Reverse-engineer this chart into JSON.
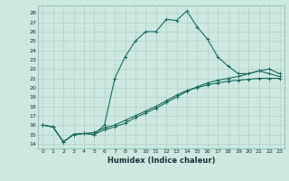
{
  "title": "",
  "xlabel": "Humidex (Indice chaleur)",
  "ylabel": "",
  "bg_color": "#cce8e0",
  "grid_color": "#b0d0c8",
  "line_color": "#1a6b5a",
  "xlim": [
    -0.5,
    23.5
  ],
  "ylim": [
    13.5,
    28.8
  ],
  "yticks": [
    14,
    15,
    16,
    17,
    18,
    19,
    20,
    21,
    22,
    23,
    24,
    25,
    26,
    27,
    28
  ],
  "xticks": [
    0,
    1,
    2,
    3,
    4,
    5,
    6,
    7,
    8,
    9,
    10,
    11,
    12,
    13,
    14,
    15,
    16,
    17,
    18,
    19,
    20,
    21,
    22,
    23
  ],
  "curve1_x": [
    0,
    1,
    2,
    3,
    4,
    5,
    6,
    7,
    8,
    9,
    10,
    11,
    12,
    13,
    14,
    15,
    16,
    17,
    18,
    19,
    20,
    21,
    22,
    23
  ],
  "curve1_y": [
    16,
    15.8,
    14.2,
    15.0,
    15.1,
    15.0,
    16.0,
    21.0,
    23.3,
    25.0,
    26.0,
    26.0,
    27.3,
    27.2,
    28.2,
    26.5,
    25.2,
    23.3,
    22.3,
    21.5,
    21.5,
    21.8,
    21.5,
    21.2
  ],
  "curve2_x": [
    0,
    1,
    2,
    3,
    4,
    5,
    6,
    7,
    8,
    9,
    10,
    11,
    12,
    13,
    14,
    15,
    16,
    17,
    18,
    19,
    20,
    21,
    22,
    23
  ],
  "curve2_y": [
    16,
    15.8,
    14.2,
    15.0,
    15.1,
    15.0,
    15.5,
    15.8,
    16.2,
    16.8,
    17.3,
    17.8,
    18.4,
    19.0,
    19.6,
    20.1,
    20.5,
    20.8,
    21.0,
    21.2,
    21.5,
    21.8,
    22.0,
    21.5
  ],
  "curve3_x": [
    0,
    1,
    2,
    3,
    4,
    5,
    6,
    7,
    8,
    9,
    10,
    11,
    12,
    13,
    14,
    15,
    16,
    17,
    18,
    19,
    20,
    21,
    22,
    23
  ],
  "curve3_y": [
    16,
    15.8,
    14.2,
    15.0,
    15.1,
    15.2,
    15.7,
    16.0,
    16.5,
    17.0,
    17.5,
    18.0,
    18.6,
    19.2,
    19.7,
    20.0,
    20.3,
    20.5,
    20.7,
    20.8,
    20.9,
    21.0,
    21.0,
    21.0
  ]
}
